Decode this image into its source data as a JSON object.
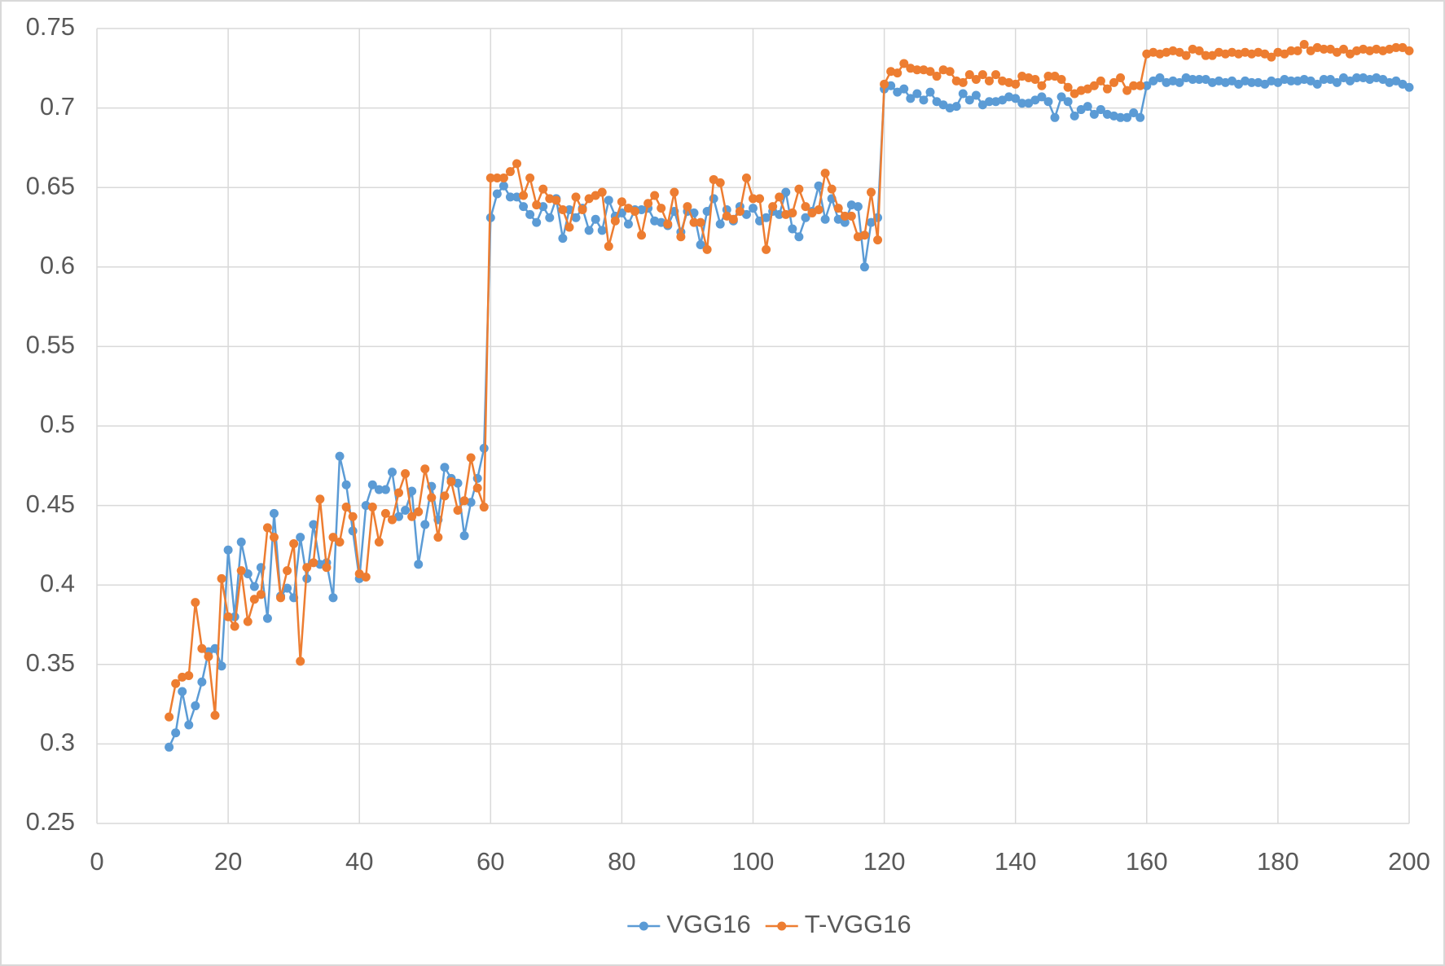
{
  "chart_data": {
    "type": "line",
    "x": [
      11,
      12,
      13,
      14,
      15,
      16,
      17,
      18,
      19,
      20,
      21,
      22,
      23,
      24,
      25,
      26,
      27,
      28,
      29,
      30,
      31,
      32,
      33,
      34,
      35,
      36,
      37,
      38,
      39,
      40,
      41,
      42,
      43,
      44,
      45,
      46,
      47,
      48,
      49,
      50,
      51,
      52,
      53,
      54,
      55,
      56,
      57,
      58,
      59,
      60,
      61,
      62,
      63,
      64,
      65,
      66,
      67,
      68,
      69,
      70,
      71,
      72,
      73,
      74,
      75,
      76,
      77,
      78,
      79,
      80,
      81,
      82,
      83,
      84,
      85,
      86,
      87,
      88,
      89,
      90,
      91,
      92,
      93,
      94,
      95,
      96,
      97,
      98,
      99,
      100,
      101,
      102,
      103,
      104,
      105,
      106,
      107,
      108,
      109,
      110,
      111,
      112,
      113,
      114,
      115,
      116,
      117,
      118,
      119,
      120,
      121,
      122,
      123,
      124,
      125,
      126,
      127,
      128,
      129,
      130,
      131,
      132,
      133,
      134,
      135,
      136,
      137,
      138,
      139,
      140,
      141,
      142,
      143,
      144,
      145,
      146,
      147,
      148,
      149,
      150,
      151,
      152,
      153,
      154,
      155,
      156,
      157,
      158,
      159,
      160,
      161,
      162,
      163,
      164,
      165,
      166,
      167,
      168,
      169,
      170,
      171,
      172,
      173,
      174,
      175,
      176,
      177,
      178,
      179,
      180,
      181,
      182,
      183,
      184,
      185,
      186,
      187,
      188,
      189,
      190,
      191,
      192,
      193,
      194,
      195,
      196,
      197,
      198,
      199,
      200
    ],
    "series": [
      {
        "name": "VGG16",
        "color": "#5b9bd5",
        "values": [
          0.298,
          0.307,
          0.333,
          0.312,
          0.324,
          0.339,
          0.358,
          0.36,
          0.349,
          0.422,
          0.38,
          0.427,
          0.407,
          0.399,
          0.411,
          0.379,
          0.445,
          0.393,
          0.398,
          0.392,
          0.43,
          0.404,
          0.438,
          0.413,
          0.414,
          0.392,
          0.481,
          0.463,
          0.434,
          0.404,
          0.45,
          0.463,
          0.46,
          0.46,
          0.471,
          0.443,
          0.447,
          0.459,
          0.413,
          0.438,
          0.462,
          0.441,
          0.474,
          0.467,
          0.464,
          0.431,
          0.452,
          0.467,
          0.486,
          0.631,
          0.646,
          0.651,
          0.644,
          0.644,
          0.638,
          0.633,
          0.628,
          0.638,
          0.631,
          0.643,
          0.618,
          0.636,
          0.631,
          0.637,
          0.623,
          0.63,
          0.623,
          0.642,
          0.632,
          0.634,
          0.627,
          0.636,
          0.636,
          0.637,
          0.629,
          0.628,
          0.626,
          0.635,
          0.622,
          0.635,
          0.634,
          0.614,
          0.635,
          0.643,
          0.627,
          0.636,
          0.629,
          0.638,
          0.633,
          0.637,
          0.629,
          0.631,
          0.635,
          0.633,
          0.647,
          0.624,
          0.619,
          0.631,
          0.635,
          0.651,
          0.63,
          0.643,
          0.63,
          0.628,
          0.639,
          0.638,
          0.6,
          0.628,
          0.631,
          0.712,
          0.714,
          0.71,
          0.712,
          0.706,
          0.709,
          0.705,
          0.71,
          0.704,
          0.702,
          0.7,
          0.701,
          0.709,
          0.705,
          0.708,
          0.702,
          0.704,
          0.704,
          0.705,
          0.707,
          0.706,
          0.703,
          0.703,
          0.705,
          0.707,
          0.704,
          0.694,
          0.707,
          0.704,
          0.695,
          0.699,
          0.701,
          0.696,
          0.699,
          0.696,
          0.695,
          0.694,
          0.694,
          0.697,
          0.694,
          0.714,
          0.717,
          0.719,
          0.716,
          0.717,
          0.716,
          0.719,
          0.718,
          0.718,
          0.718,
          0.716,
          0.717,
          0.716,
          0.717,
          0.715,
          0.717,
          0.716,
          0.716,
          0.715,
          0.717,
          0.716,
          0.718,
          0.717,
          0.717,
          0.718,
          0.717,
          0.715,
          0.718,
          0.718,
          0.716,
          0.719,
          0.717,
          0.719,
          0.719,
          0.718,
          0.719,
          0.718,
          0.716,
          0.717,
          0.715,
          0.713
        ]
      },
      {
        "name": "T-VGG16",
        "color": "#ed7d31",
        "values": [
          0.317,
          0.338,
          0.342,
          0.343,
          0.389,
          0.36,
          0.355,
          0.318,
          0.404,
          0.38,
          0.374,
          0.409,
          0.377,
          0.391,
          0.394,
          0.436,
          0.43,
          0.392,
          0.409,
          0.426,
          0.352,
          0.411,
          0.414,
          0.454,
          0.411,
          0.43,
          0.427,
          0.449,
          0.443,
          0.407,
          0.405,
          0.449,
          0.427,
          0.445,
          0.441,
          0.458,
          0.47,
          0.443,
          0.446,
          0.473,
          0.455,
          0.43,
          0.456,
          0.465,
          0.447,
          0.453,
          0.48,
          0.461,
          0.449,
          0.656,
          0.656,
          0.656,
          0.66,
          0.665,
          0.645,
          0.656,
          0.639,
          0.649,
          0.643,
          0.642,
          0.636,
          0.625,
          0.644,
          0.636,
          0.643,
          0.645,
          0.647,
          0.613,
          0.629,
          0.641,
          0.637,
          0.635,
          0.62,
          0.64,
          0.645,
          0.637,
          0.627,
          0.647,
          0.619,
          0.638,
          0.628,
          0.628,
          0.611,
          0.655,
          0.653,
          0.632,
          0.63,
          0.635,
          0.656,
          0.643,
          0.643,
          0.611,
          0.638,
          0.644,
          0.633,
          0.634,
          0.649,
          0.638,
          0.634,
          0.636,
          0.659,
          0.649,
          0.637,
          0.632,
          0.632,
          0.619,
          0.62,
          0.647,
          0.617,
          0.715,
          0.723,
          0.722,
          0.728,
          0.725,
          0.724,
          0.724,
          0.723,
          0.72,
          0.724,
          0.723,
          0.717,
          0.716,
          0.721,
          0.718,
          0.721,
          0.717,
          0.721,
          0.717,
          0.716,
          0.715,
          0.72,
          0.719,
          0.718,
          0.714,
          0.72,
          0.72,
          0.718,
          0.713,
          0.709,
          0.711,
          0.712,
          0.714,
          0.717,
          0.712,
          0.716,
          0.719,
          0.711,
          0.714,
          0.714,
          0.734,
          0.735,
          0.734,
          0.735,
          0.736,
          0.735,
          0.733,
          0.737,
          0.736,
          0.733,
          0.733,
          0.735,
          0.734,
          0.735,
          0.734,
          0.735,
          0.734,
          0.735,
          0.734,
          0.732,
          0.735,
          0.734,
          0.736,
          0.736,
          0.74,
          0.736,
          0.738,
          0.737,
          0.737,
          0.735,
          0.737,
          0.734,
          0.736,
          0.737,
          0.736,
          0.737,
          0.736,
          0.737,
          0.738,
          0.738,
          0.736
        ]
      }
    ],
    "xlim": [
      0,
      200
    ],
    "xticks": [
      0,
      20,
      40,
      60,
      80,
      100,
      120,
      140,
      160,
      180,
      200
    ],
    "ylim": [
      0.25,
      0.75
    ],
    "yticks": [
      0.25,
      0.3,
      0.35,
      0.4,
      0.45,
      0.5,
      0.55,
      0.6,
      0.65,
      0.7,
      0.75
    ],
    "grid": true,
    "legend": "bottom"
  }
}
